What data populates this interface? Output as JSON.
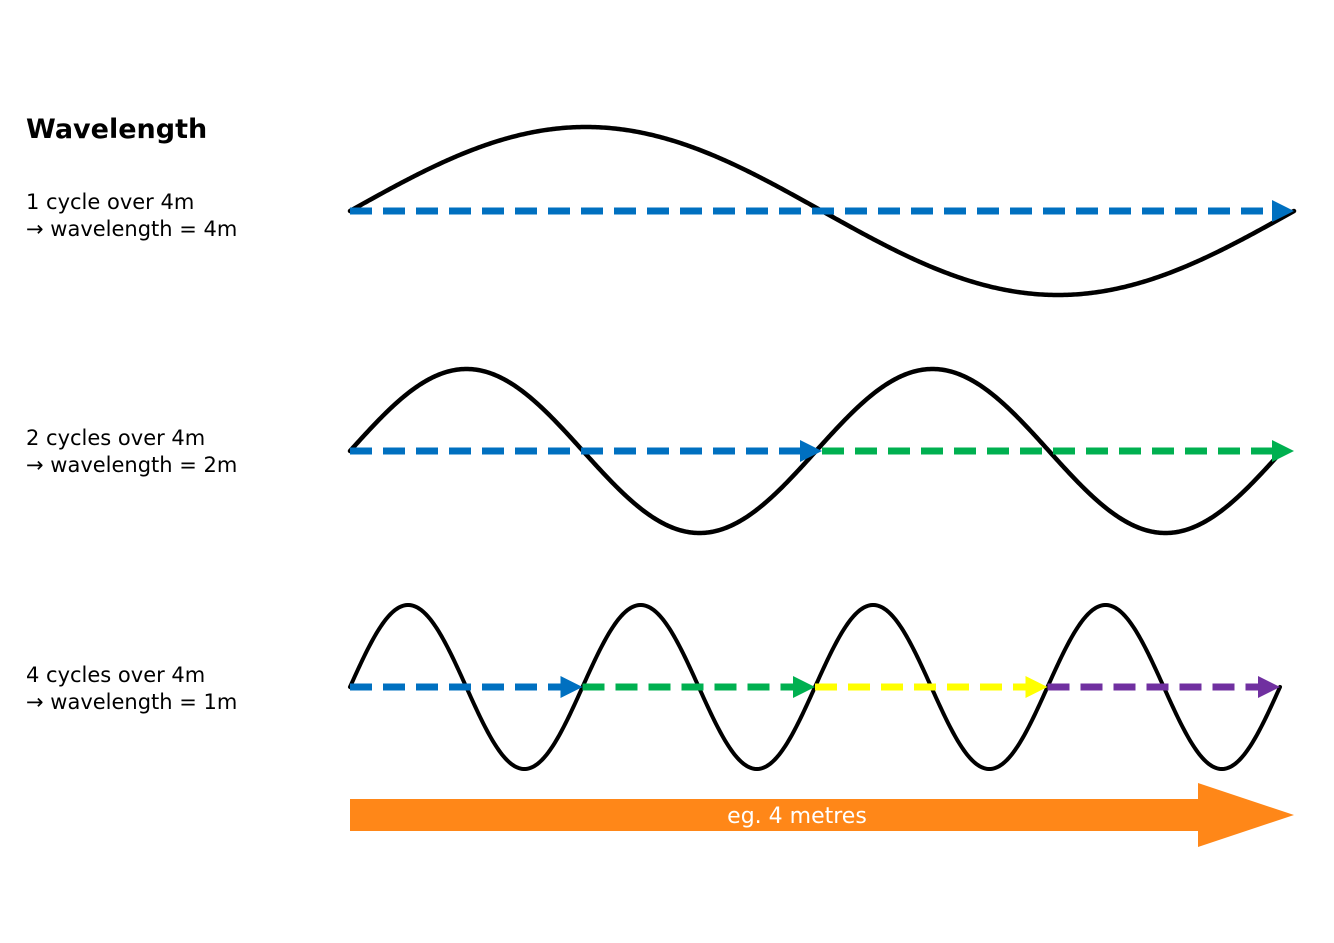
{
  "title": "Wavelength",
  "rows": [
    {
      "cycles_text": "1 cycle over 4m",
      "result_text": "→ wavelength = 4m",
      "cycles": 1,
      "wavelength_m": 4,
      "arrow_colors": [
        "#0070C0"
      ]
    },
    {
      "cycles_text": "2 cycles over 4m",
      "result_text": "→ wavelength = 2m",
      "cycles": 2,
      "wavelength_m": 2,
      "arrow_colors": [
        "#0070C0",
        "#00B050"
      ]
    },
    {
      "cycles_text": "4 cycles over 4m",
      "result_text": "→ wavelength = 1m",
      "cycles": 4,
      "wavelength_m": 1,
      "arrow_colors": [
        "#0070C0",
        "#00B050",
        "#FFFF00",
        "#7030A0"
      ]
    }
  ],
  "distance": {
    "label": "eg. 4 metres",
    "color": "#FF8718",
    "text_color": "#ffffff"
  },
  "wave_color": "#000000"
}
